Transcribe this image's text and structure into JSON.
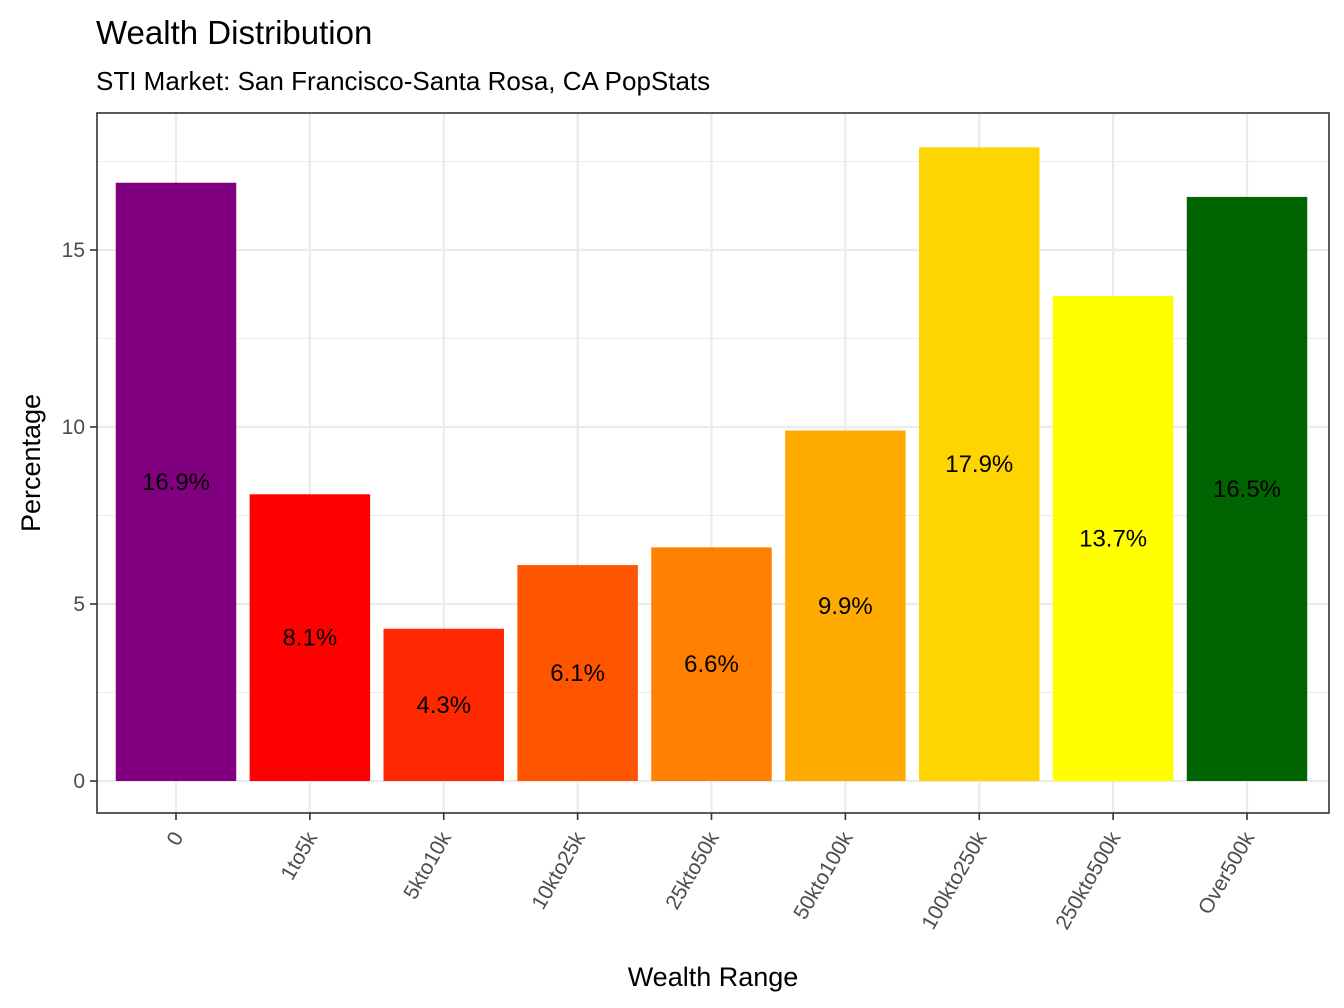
{
  "chart_data": {
    "type": "bar",
    "title": "Wealth Distribution",
    "subtitle": "STI Market: San Francisco-Santa Rosa, CA PopStats",
    "xlabel": "Wealth Range",
    "ylabel": "Percentage",
    "categories": [
      "0",
      "1to5k",
      "5kto10k",
      "10kto25k",
      "25kto50k",
      "50kto100k",
      "100kto250k",
      "250kto500k",
      "Over500k"
    ],
    "values": [
      16.9,
      8.1,
      4.3,
      6.1,
      6.6,
      9.9,
      17.9,
      13.7,
      16.5
    ],
    "data_labels": [
      "16.9%",
      "8.1%",
      "4.3%",
      "6.1%",
      "6.6%",
      "9.9%",
      "17.9%",
      "13.7%",
      "16.5%"
    ],
    "colors": [
      "#800080",
      "#ff0000",
      "#ff2800",
      "#ff5500",
      "#ff8000",
      "#ffaa00",
      "#ffd500",
      "#ffff00",
      "#006400"
    ],
    "yticks": [
      0,
      5,
      10,
      15
    ],
    "ytick_labels": [
      "0",
      "5",
      "10",
      "15"
    ],
    "ylim": [
      -0.9,
      18.8
    ],
    "grid": true,
    "legend": "none",
    "xtick_rotation_deg": 60
  }
}
